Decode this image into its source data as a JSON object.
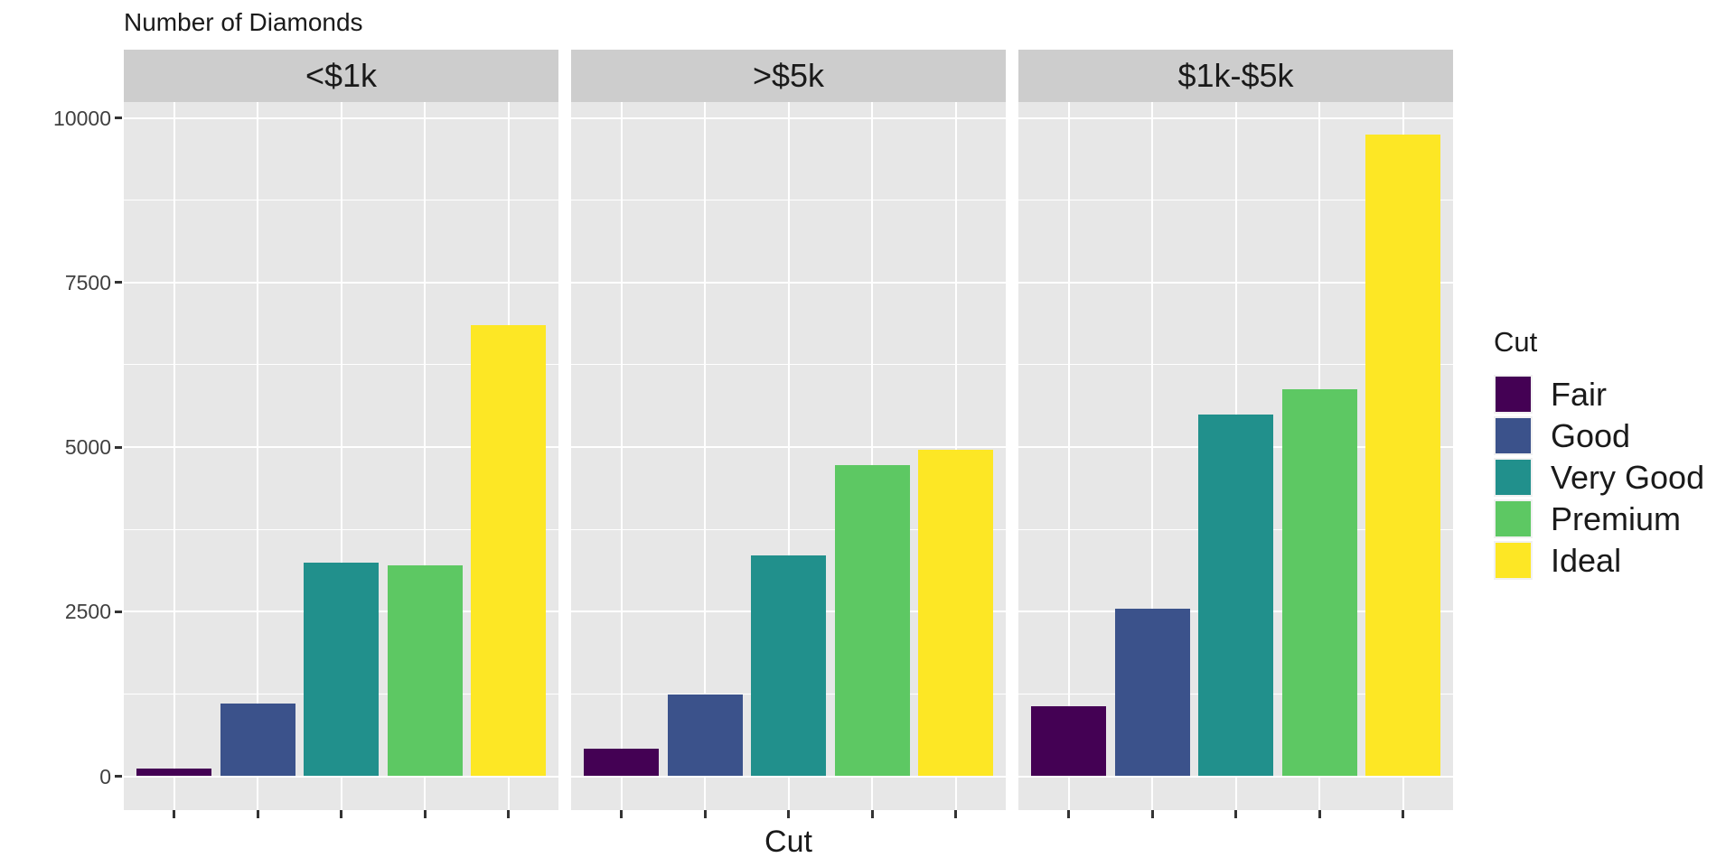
{
  "title": "Number of Diamonds",
  "x_axis": {
    "title": "Cut"
  },
  "y_axis": {
    "tick_labels": [
      "10000",
      "7500",
      "5000",
      "2500",
      "0"
    ]
  },
  "legend": {
    "title": "Cut",
    "entries": [
      {
        "label": "Fair",
        "color": "#440154"
      },
      {
        "label": "Good",
        "color": "#3B528B"
      },
      {
        "label": "Very Good",
        "color": "#21908C"
      },
      {
        "label": "Premium",
        "color": "#5DC863"
      },
      {
        "label": "Ideal",
        "color": "#FDE725"
      }
    ]
  },
  "colors": {
    "panel_bg": "#E7E7E7",
    "strip_bg": "#CDCDCD",
    "grid": "#FFFFFF",
    "tick": "#333333",
    "axis_text": "#404040",
    "text": "#1A1A1A",
    "legend_key_bg": "#F1F1F1"
  },
  "chart_data": {
    "type": "bar",
    "title": "Number of Diamonds",
    "xlabel": "Cut",
    "ylabel": "Number of Diamonds",
    "categories": [
      "Fair",
      "Good",
      "Very Good",
      "Premium",
      "Ideal"
    ],
    "series_colors": [
      "#440154",
      "#3B528B",
      "#21908C",
      "#5DC863",
      "#FDE725"
    ],
    "facets": [
      {
        "label": "<$1k",
        "values": [
          120,
          1100,
          3250,
          3200,
          6850
        ]
      },
      {
        "label": ">$5k",
        "values": [
          425,
          1240,
          3350,
          4720,
          4960
        ]
      },
      {
        "label": "$1k-$5k",
        "values": [
          1060,
          2550,
          5500,
          5880,
          9740
        ]
      }
    ],
    "ylim": [
      0,
      10000
    ],
    "y_major_ticks": [
      0,
      2500,
      5000,
      7500,
      10000
    ],
    "y_minor_gridlines": [
      1250,
      3750,
      6250,
      8750
    ],
    "grid": true,
    "bar_width_fraction": 0.9,
    "legend_title": "Cut",
    "legend_position": "right",
    "x_tick_labels_shown": false
  }
}
